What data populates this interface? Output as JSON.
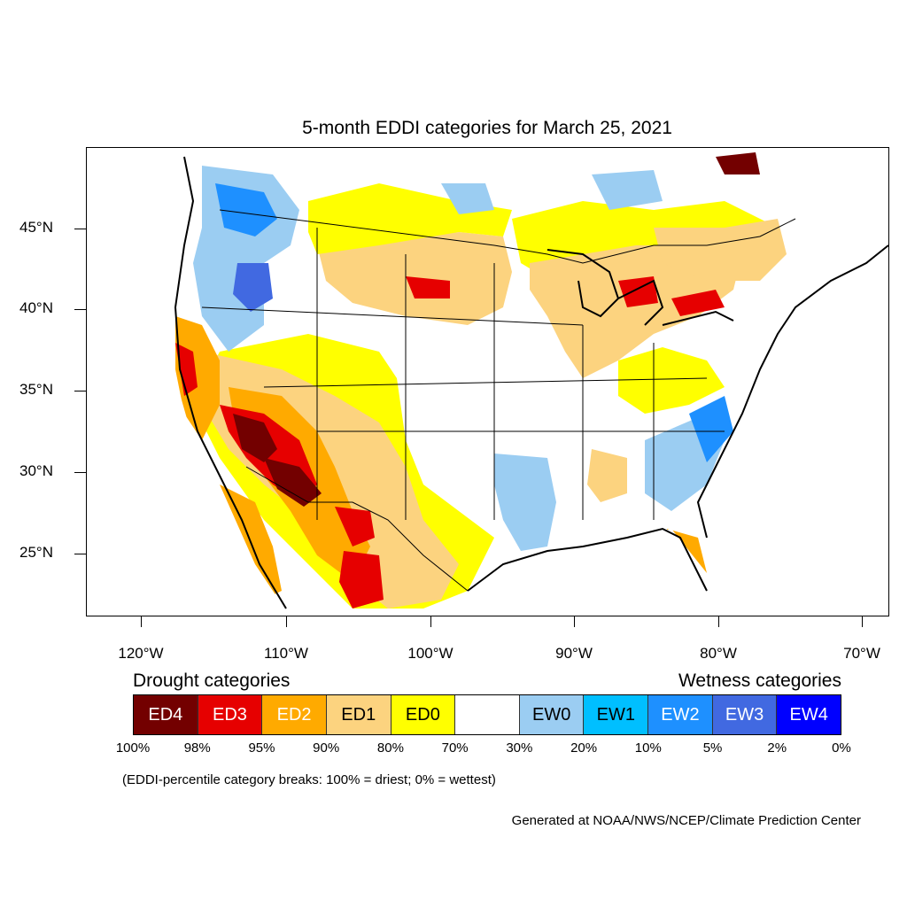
{
  "title": "5-month EDDI categories for March 25, 2021",
  "axes": {
    "lat_labels": [
      "45°N",
      "40°N",
      "35°N",
      "30°N",
      "25°N"
    ],
    "lon_labels": [
      "120°W",
      "110°W",
      "100°W",
      "90°W",
      "80°W",
      "70°W"
    ]
  },
  "legend": {
    "drought_heading": "Drought categories",
    "wetness_heading": "Wetness categories",
    "categories": [
      {
        "label": "ED4",
        "color": "#730000",
        "text_color": "#ffffff"
      },
      {
        "label": "ED3",
        "color": "#e60000",
        "text_color": "#ffffff"
      },
      {
        "label": "ED2",
        "color": "#ffaa00",
        "text_color": "#ffffff"
      },
      {
        "label": "ED1",
        "color": "#fcd37f",
        "text_color": "#000000"
      },
      {
        "label": "ED0",
        "color": "#ffff00",
        "text_color": "#000000"
      },
      {
        "label": "",
        "color": "#ffffff",
        "text_color": "#000000"
      },
      {
        "label": "EW0",
        "color": "#9bcdf2",
        "text_color": "#000000"
      },
      {
        "label": "EW1",
        "color": "#00bfff",
        "text_color": "#000000"
      },
      {
        "label": "EW2",
        "color": "#1e90ff",
        "text_color": "#ffffff"
      },
      {
        "label": "EW3",
        "color": "#4169e1",
        "text_color": "#ffffff"
      },
      {
        "label": "EW4",
        "color": "#0000ff",
        "text_color": "#ffffff"
      }
    ],
    "breaks": [
      "100%",
      "98%",
      "95%",
      "90%",
      "80%",
      "70%",
      "30%",
      "20%",
      "10%",
      "5%",
      "2%",
      "0%"
    ]
  },
  "note": "(EDDI-percentile category breaks: 100% = driest; 0% = wettest)",
  "credit": "Generated at NOAA/NWS/NCEP/Climate Prediction Center"
}
